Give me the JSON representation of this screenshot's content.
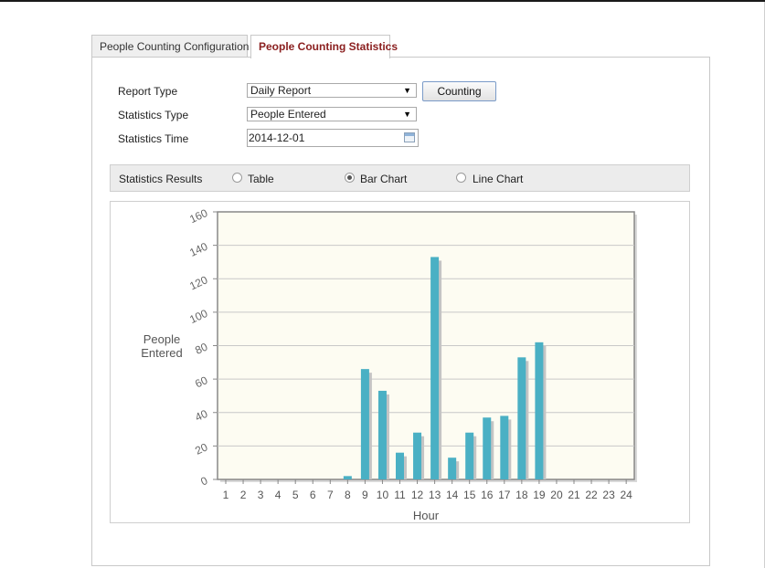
{
  "tabs": [
    {
      "label": "People Counting Configuration",
      "active": false
    },
    {
      "label": "People Counting Statistics",
      "active": true
    }
  ],
  "form": {
    "report_type": {
      "label": "Report Type",
      "value": "Daily Report"
    },
    "statistics_type": {
      "label": "Statistics Type",
      "value": "People Entered"
    },
    "statistics_time": {
      "label": "Statistics Time",
      "value": "2014-12-01"
    },
    "counting_button": "Counting"
  },
  "results": {
    "label": "Statistics Results",
    "options": [
      {
        "label": "Table",
        "checked": false
      },
      {
        "label": "Bar Chart",
        "checked": true
      },
      {
        "label": "Line Chart",
        "checked": false
      }
    ]
  },
  "chart_data": {
    "type": "bar",
    "xlabel": "Hour",
    "ylabel": "People\nEntered",
    "ylim": [
      0,
      160
    ],
    "yticks": [
      0,
      20,
      40,
      60,
      80,
      100,
      120,
      140,
      160
    ],
    "categories": [
      "1",
      "2",
      "3",
      "4",
      "5",
      "6",
      "7",
      "8",
      "9",
      "10",
      "11",
      "12",
      "13",
      "14",
      "15",
      "16",
      "17",
      "18",
      "19",
      "20",
      "21",
      "22",
      "23",
      "24"
    ],
    "values": [
      0,
      0,
      0,
      0,
      0,
      0,
      0,
      2,
      66,
      53,
      16,
      28,
      133,
      13,
      28,
      37,
      38,
      73,
      82,
      0,
      0,
      0,
      0,
      0
    ],
    "grid": true,
    "bar_color": "#4ab0c4",
    "plot_background": "#fdfcf2"
  }
}
